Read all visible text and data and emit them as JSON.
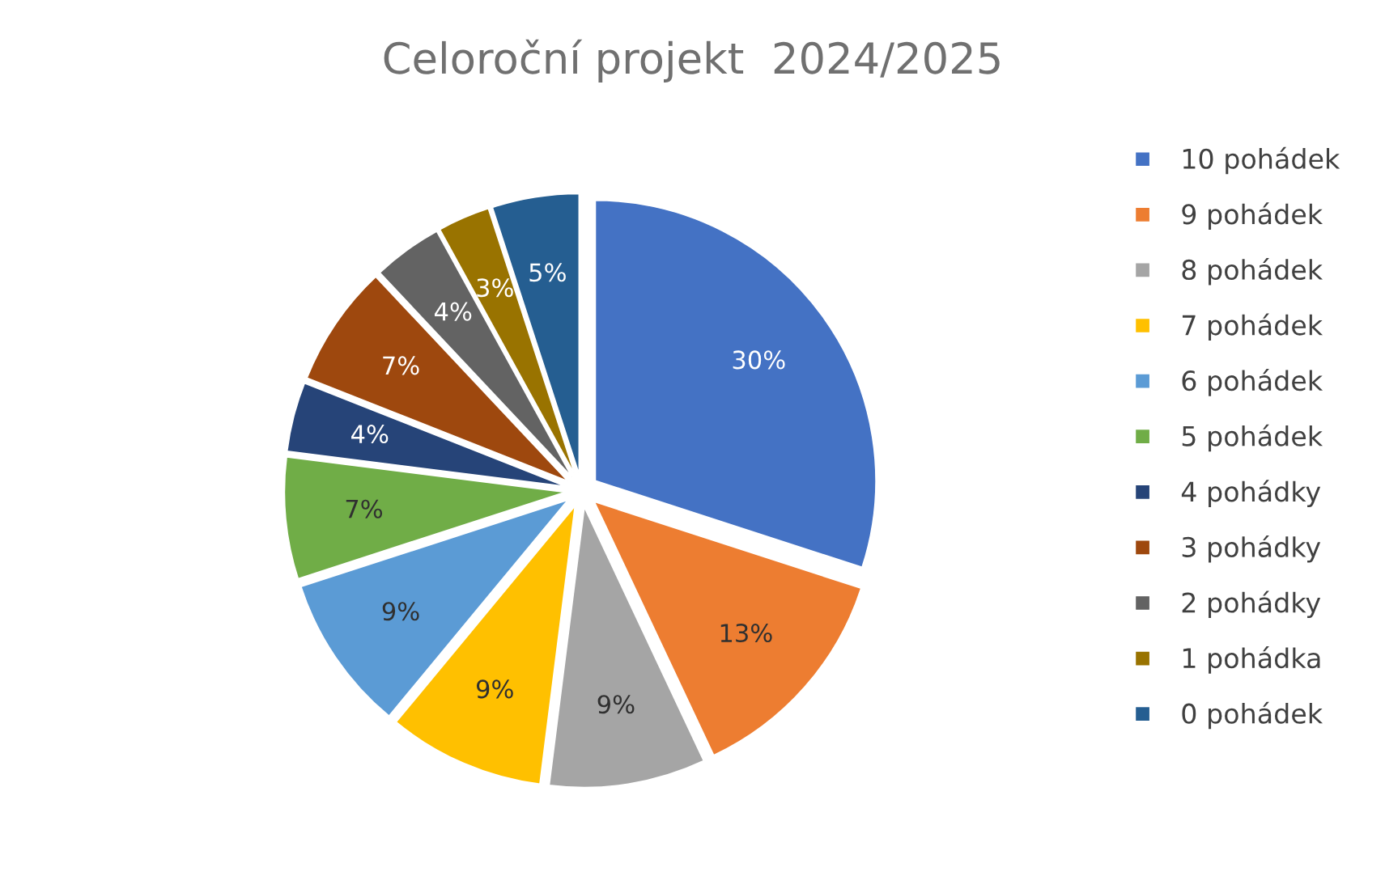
{
  "chart_data": {
    "type": "pie",
    "title": "Celoroční projekt  2024/2025",
    "categories": [
      "10 pohádek",
      "9 pohádek",
      "8 pohádek",
      "7 pohádek",
      "6 pohádek",
      "5 pohádek",
      "4 pohádky",
      "3 pohádky",
      "2 pohádky",
      "1 pohádka",
      "0 pohádek"
    ],
    "values": [
      30,
      13,
      9,
      9,
      9,
      7,
      4,
      7,
      4,
      3,
      5
    ],
    "colors": [
      "#4472c4",
      "#ed7d31",
      "#a5a5a5",
      "#ffc000",
      "#5b9bd5",
      "#70ad47",
      "#264478",
      "#9e480e",
      "#636363",
      "#997300",
      "#255e91"
    ],
    "value_labels": [
      "30%",
      "13%",
      "9%",
      "9%",
      "9%",
      "7%",
      "4%",
      "7%",
      "4%",
      "3%",
      "5%"
    ],
    "legend": "right"
  }
}
